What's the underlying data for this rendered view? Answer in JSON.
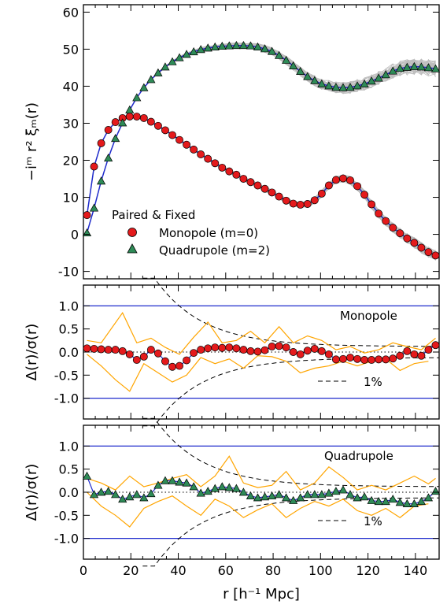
{
  "chart_data": [
    {
      "type": "line",
      "title": "",
      "xlabel": "r [h⁻¹ Mpc]",
      "ylabel": "−iᵐ r² ξₘ(r)",
      "xlim": [
        0,
        150
      ],
      "ylim": [
        -12,
        62
      ],
      "x_ticks": [
        "0",
        "20",
        "40",
        "60",
        "80",
        "100",
        "120",
        "140"
      ],
      "y_ticks": [
        -10,
        0,
        10,
        20,
        30,
        40,
        50,
        60
      ],
      "legend_title": "Paired & Fixed",
      "legend_location": "lower-left",
      "colors": {
        "monopole": "#e41a1c",
        "quadrupole": "#2e8b57",
        "model": "#1f2bcc",
        "realizations": "#bdbdbd"
      },
      "series": [
        {
          "name": "Monopole (m=0)",
          "marker": "circle",
          "x": [
            1.5,
            4.5,
            7.5,
            10.5,
            13.5,
            16.5,
            19.5,
            22.5,
            25.5,
            28.5,
            31.5,
            34.5,
            37.5,
            40.5,
            43.5,
            46.5,
            49.5,
            52.5,
            55.5,
            58.5,
            61.5,
            64.5,
            67.5,
            70.5,
            73.5,
            76.5,
            79.5,
            82.5,
            85.5,
            88.5,
            91.5,
            94.5,
            97.5,
            100.5,
            103.5,
            106.5,
            109.5,
            112.5,
            115.5,
            118.5,
            121.5,
            124.5,
            127.5,
            130.5,
            133.5,
            136.5,
            139.5,
            142.5,
            145.5,
            148.5
          ],
          "y": [
            5.2,
            18.3,
            24.6,
            28.2,
            30.3,
            31.4,
            31.8,
            31.8,
            31.4,
            30.4,
            29.3,
            28.1,
            26.8,
            25.5,
            24.2,
            22.9,
            21.6,
            20.4,
            19.2,
            18.0,
            17.0,
            16.1,
            15.0,
            14.1,
            13.2,
            12.3,
            11.3,
            10.2,
            9.1,
            8.3,
            8.0,
            8.2,
            9.2,
            11.0,
            13.2,
            14.7,
            15.1,
            14.6,
            13.0,
            10.7,
            8.1,
            5.6,
            3.6,
            1.8,
            0.3,
            -1.1,
            -2.3,
            -3.6,
            -4.8,
            -5.7
          ]
        },
        {
          "name": "Quadrupole (m=2)",
          "marker": "triangle",
          "x": [
            1.5,
            4.5,
            7.5,
            10.5,
            13.5,
            16.5,
            19.5,
            22.5,
            25.5,
            28.5,
            31.5,
            34.5,
            37.5,
            40.5,
            43.5,
            46.5,
            49.5,
            52.5,
            55.5,
            58.5,
            61.5,
            64.5,
            67.5,
            70.5,
            73.5,
            76.5,
            79.5,
            82.5,
            85.5,
            88.5,
            91.5,
            94.5,
            97.5,
            100.5,
            103.5,
            106.5,
            109.5,
            112.5,
            115.5,
            118.5,
            121.5,
            124.5,
            127.5,
            130.5,
            133.5,
            136.5,
            139.5,
            142.5,
            145.5,
            148.5
          ],
          "y": [
            0.4,
            7.1,
            14.4,
            20.6,
            25.9,
            30.1,
            33.6,
            36.9,
            39.6,
            41.8,
            43.6,
            45.2,
            46.6,
            47.7,
            48.6,
            49.3,
            49.9,
            50.3,
            50.6,
            50.8,
            50.9,
            51.0,
            51.0,
            50.9,
            50.6,
            50.1,
            49.4,
            48.3,
            47.0,
            45.5,
            44.0,
            42.6,
            41.5,
            40.6,
            40.1,
            39.7,
            39.6,
            39.7,
            40.1,
            40.6,
            41.4,
            42.2,
            43.1,
            44.1,
            44.8,
            45.1,
            45.3,
            45.2,
            45.0,
            44.7
          ]
        }
      ]
    },
    {
      "type": "line",
      "title": "",
      "annotation": "Monopole",
      "note_label": "1%",
      "xlabel": "",
      "ylabel": "Δ(r)/σ(r)",
      "xlim": [
        0,
        150
      ],
      "ylim": [
        -1.45,
        1.45
      ],
      "y_ticks": [
        "1.0",
        "0.5",
        "0.0",
        "-0.5",
        "-1.0"
      ],
      "reference_lines": [
        1.0,
        -1.0
      ],
      "series": [
        {
          "name": "Monopole (m=0)",
          "marker": "circle",
          "x": [
            1.5,
            4.5,
            7.5,
            10.5,
            13.5,
            16.5,
            19.5,
            22.5,
            25.5,
            28.5,
            31.5,
            34.5,
            37.5,
            40.5,
            43.5,
            46.5,
            49.5,
            52.5,
            55.5,
            58.5,
            61.5,
            64.5,
            67.5,
            70.5,
            73.5,
            76.5,
            79.5,
            82.5,
            85.5,
            88.5,
            91.5,
            94.5,
            97.5,
            100.5,
            103.5,
            106.5,
            109.5,
            112.5,
            115.5,
            118.5,
            121.5,
            124.5,
            127.5,
            130.5,
            133.5,
            136.5,
            139.5,
            142.5,
            145.5,
            148.5
          ],
          "y": [
            0.08,
            0.07,
            0.06,
            0.05,
            0.05,
            0.02,
            -0.05,
            -0.17,
            -0.1,
            0.05,
            -0.03,
            -0.2,
            -0.32,
            -0.3,
            -0.18,
            -0.02,
            0.05,
            0.08,
            0.1,
            0.09,
            0.1,
            0.08,
            0.05,
            0.02,
            0.01,
            0.04,
            0.12,
            0.13,
            0.1,
            0.0,
            -0.05,
            0.03,
            0.07,
            0.02,
            -0.05,
            -0.16,
            -0.15,
            -0.12,
            -0.15,
            -0.17,
            -0.17,
            -0.16,
            -0.16,
            -0.14,
            -0.08,
            0.02,
            -0.05,
            -0.08,
            0.05,
            0.15
          ]
        },
        {
          "name": "upper envelope",
          "x": [
            1.5,
            7.5,
            16.5,
            22.5,
            28.5,
            34.5,
            40.5,
            46.5,
            52.5,
            58.5,
            64.5,
            70.5,
            76.5,
            82.5,
            88.5,
            94.5,
            100.5,
            106.5,
            112.5,
            118.5,
            124.5,
            130.5,
            136.5,
            142.5,
            148.5
          ],
          "y": [
            0.25,
            0.2,
            0.85,
            0.2,
            0.3,
            0.1,
            -0.05,
            0.32,
            0.65,
            0.2,
            0.25,
            0.45,
            0.2,
            0.55,
            0.2,
            0.35,
            0.25,
            0.05,
            0.12,
            -0.02,
            0.05,
            0.2,
            0.12,
            0.05,
            0.3
          ]
        },
        {
          "name": "lower envelope",
          "x": [
            1.5,
            7.5,
            13.5,
            19.5,
            25.5,
            31.5,
            37.5,
            43.5,
            49.5,
            55.5,
            61.5,
            67.5,
            73.5,
            79.5,
            85.5,
            91.5,
            97.5,
            103.5,
            109.5,
            115.5,
            121.5,
            127.5,
            133.5,
            139.5,
            145.5
          ],
          "y": [
            -0.05,
            -0.3,
            -0.6,
            -0.85,
            -0.25,
            -0.45,
            -0.65,
            -0.5,
            -0.12,
            -0.25,
            -0.15,
            -0.35,
            -0.08,
            -0.1,
            -0.2,
            -0.45,
            -0.35,
            -0.3,
            -0.2,
            -0.3,
            -0.2,
            -0.15,
            -0.4,
            -0.25,
            -0.2
          ]
        }
      ]
    },
    {
      "type": "line",
      "title": "",
      "annotation": "Quadrupole",
      "note_label": "1%",
      "xlabel": "r [h⁻¹ Mpc]",
      "ylabel": "Δ(r)/σ(r)",
      "xlim": [
        0,
        150
      ],
      "ylim": [
        -1.45,
        1.45
      ],
      "x_ticks": [
        "0",
        "20",
        "40",
        "60",
        "80",
        "100",
        "120",
        "140"
      ],
      "y_ticks": [
        "1.0",
        "0.5",
        "0.0",
        "-0.5",
        "-1.0"
      ],
      "reference_lines": [
        1.0,
        -1.0
      ],
      "series": [
        {
          "name": "Quadrupole (m=2)",
          "marker": "triangle",
          "x": [
            1.5,
            4.5,
            7.5,
            10.5,
            13.5,
            16.5,
            19.5,
            22.5,
            25.5,
            28.5,
            31.5,
            34.5,
            37.5,
            40.5,
            43.5,
            46.5,
            49.5,
            52.5,
            55.5,
            58.5,
            61.5,
            64.5,
            67.5,
            70.5,
            73.5,
            76.5,
            79.5,
            82.5,
            85.5,
            88.5,
            91.5,
            94.5,
            97.5,
            100.5,
            103.5,
            106.5,
            109.5,
            112.5,
            115.5,
            118.5,
            121.5,
            124.5,
            127.5,
            130.5,
            133.5,
            136.5,
            139.5,
            142.5,
            145.5,
            148.5
          ],
          "y": [
            0.35,
            -0.05,
            0.0,
            0.02,
            -0.05,
            -0.15,
            -0.1,
            -0.05,
            -0.12,
            -0.03,
            0.15,
            0.25,
            0.25,
            0.22,
            0.2,
            0.12,
            -0.02,
            0.02,
            0.08,
            0.12,
            0.1,
            0.08,
            0.0,
            -0.08,
            -0.12,
            -0.1,
            -0.08,
            -0.05,
            -0.12,
            -0.18,
            -0.12,
            -0.05,
            -0.05,
            -0.05,
            -0.02,
            0.02,
            0.05,
            -0.05,
            -0.12,
            -0.1,
            -0.18,
            -0.2,
            -0.2,
            -0.15,
            -0.22,
            -0.25,
            -0.25,
            -0.2,
            -0.12,
            0.02
          ]
        },
        {
          "name": "upper envelope",
          "x": [
            1.5,
            7.5,
            13.5,
            19.5,
            25.5,
            31.5,
            37.5,
            43.5,
            49.5,
            55.5,
            61.5,
            67.5,
            73.5,
            79.5,
            85.5,
            91.5,
            97.5,
            103.5,
            109.5,
            115.5,
            121.5,
            127.5,
            133.5,
            139.5,
            145.5,
            148.5
          ],
          "y": [
            0.3,
            0.2,
            0.05,
            0.35,
            0.12,
            0.2,
            0.3,
            0.38,
            0.12,
            0.35,
            0.78,
            0.2,
            0.1,
            0.15,
            0.45,
            0.05,
            0.2,
            0.55,
            0.32,
            0.05,
            0.15,
            0.05,
            0.2,
            0.35,
            0.18,
            0.3
          ]
        },
        {
          "name": "lower envelope",
          "x": [
            1.5,
            7.5,
            13.5,
            19.5,
            25.5,
            31.5,
            37.5,
            43.5,
            49.5,
            55.5,
            61.5,
            67.5,
            73.5,
            79.5,
            85.5,
            91.5,
            97.5,
            103.5,
            109.5,
            115.5,
            121.5,
            127.5,
            133.5,
            139.5,
            145.5
          ],
          "y": [
            0.0,
            -0.3,
            -0.5,
            -0.75,
            -0.35,
            -0.2,
            -0.08,
            -0.3,
            -0.5,
            -0.15,
            -0.3,
            -0.55,
            -0.38,
            -0.25,
            -0.55,
            -0.35,
            -0.2,
            -0.3,
            -0.15,
            -0.4,
            -0.5,
            -0.35,
            -0.55,
            -0.3,
            -0.25
          ]
        }
      ]
    }
  ]
}
